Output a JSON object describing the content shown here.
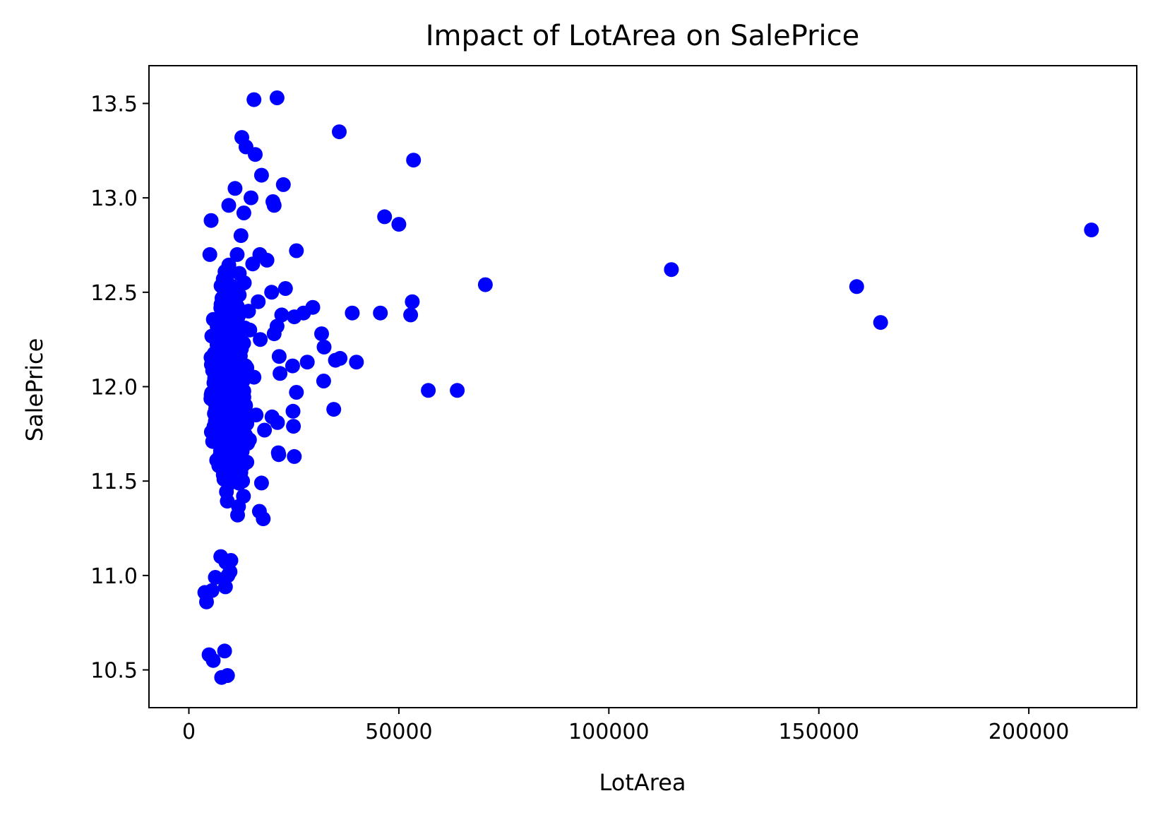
{
  "chart_data": {
    "type": "scatter",
    "title": "Impact of LotArea on SalePrice",
    "xlabel": "LotArea",
    "ylabel": "SalePrice",
    "xlim": [
      -9500,
      225700
    ],
    "ylim": [
      10.3,
      13.7
    ],
    "x_ticks": [
      0,
      50000,
      100000,
      150000,
      200000
    ],
    "y_ticks": [
      10.5,
      11.0,
      11.5,
      12.0,
      12.5,
      13.0,
      13.5
    ],
    "grid": false,
    "marker_color": "#0000ff",
    "series": [
      {
        "points": [
          [
            15500,
            13.52
          ],
          [
            21000,
            13.53
          ],
          [
            35800,
            13.35
          ],
          [
            12600,
            13.32
          ],
          [
            13600,
            13.27
          ],
          [
            15800,
            13.23
          ],
          [
            53500,
            13.2
          ],
          [
            17300,
            13.12
          ],
          [
            22500,
            13.07
          ],
          [
            11000,
            13.05
          ],
          [
            20000,
            12.98
          ],
          [
            20300,
            12.96
          ],
          [
            9500,
            12.96
          ],
          [
            14800,
            13.0
          ],
          [
            46600,
            12.9
          ],
          [
            50000,
            12.86
          ],
          [
            5300,
            12.88
          ],
          [
            13100,
            12.92
          ],
          [
            214900,
            12.83
          ],
          [
            25600,
            12.72
          ],
          [
            5000,
            12.7
          ],
          [
            16900,
            12.7
          ],
          [
            18600,
            12.67
          ],
          [
            114900,
            12.62
          ],
          [
            70600,
            12.54
          ],
          [
            159000,
            12.53
          ],
          [
            23000,
            12.52
          ],
          [
            19700,
            12.5
          ],
          [
            53200,
            12.45
          ],
          [
            29500,
            12.42
          ],
          [
            27300,
            12.39
          ],
          [
            38900,
            12.39
          ],
          [
            45600,
            12.39
          ],
          [
            52800,
            12.38
          ],
          [
            164700,
            12.34
          ],
          [
            25100,
            12.37
          ],
          [
            22100,
            12.38
          ],
          [
            21000,
            12.32
          ],
          [
            20300,
            12.28
          ],
          [
            31600,
            12.28
          ],
          [
            32200,
            12.21
          ],
          [
            21500,
            12.16
          ],
          [
            34900,
            12.14
          ],
          [
            36000,
            12.15
          ],
          [
            39900,
            12.13
          ],
          [
            28200,
            12.13
          ],
          [
            24700,
            12.11
          ],
          [
            21700,
            12.07
          ],
          [
            32100,
            12.03
          ],
          [
            57000,
            11.98
          ],
          [
            63900,
            11.98
          ],
          [
            25600,
            11.97
          ],
          [
            34500,
            11.88
          ],
          [
            24800,
            11.87
          ],
          [
            19800,
            11.84
          ],
          [
            21100,
            11.81
          ],
          [
            24900,
            11.79
          ],
          [
            18000,
            11.77
          ],
          [
            21300,
            11.65
          ],
          [
            21400,
            11.64
          ],
          [
            25100,
            11.63
          ],
          [
            17300,
            11.49
          ],
          [
            16800,
            11.34
          ],
          [
            17700,
            11.3
          ],
          [
            13800,
            11.6
          ],
          [
            13000,
            11.42
          ],
          [
            11600,
            11.32
          ],
          [
            10000,
            11.08
          ],
          [
            9800,
            11.02
          ],
          [
            8800,
            11.07
          ],
          [
            7600,
            11.1
          ],
          [
            9300,
            11.0
          ],
          [
            6300,
            10.99
          ],
          [
            5500,
            10.92
          ],
          [
            3800,
            10.91
          ],
          [
            4200,
            10.86
          ],
          [
            8700,
            10.94
          ],
          [
            4800,
            10.58
          ],
          [
            5800,
            10.55
          ],
          [
            8500,
            10.6
          ],
          [
            7800,
            10.46
          ],
          [
            9200,
            10.47
          ],
          [
            12000,
            12.6
          ],
          [
            13200,
            12.55
          ],
          [
            14200,
            12.4
          ],
          [
            12500,
            12.2
          ],
          [
            11800,
            12.0
          ],
          [
            13500,
            11.9
          ],
          [
            12400,
            12.8
          ],
          [
            11500,
            12.7
          ],
          [
            14500,
            12.3
          ],
          [
            13800,
            12.1
          ],
          [
            16000,
            11.85
          ],
          [
            15500,
            12.05
          ],
          [
            16500,
            12.45
          ],
          [
            17000,
            12.25
          ],
          [
            15200,
            12.65
          ],
          [
            14000,
            11.7
          ],
          [
            12800,
            11.5
          ],
          [
            11200,
            11.65
          ]
        ],
        "dense_cluster": {
          "x_range": [
            1300,
            16000
          ],
          "y_range": [
            11.2,
            12.9
          ],
          "x_center": 9500,
          "y_center": 12.0,
          "count": 1300
        }
      }
    ]
  }
}
